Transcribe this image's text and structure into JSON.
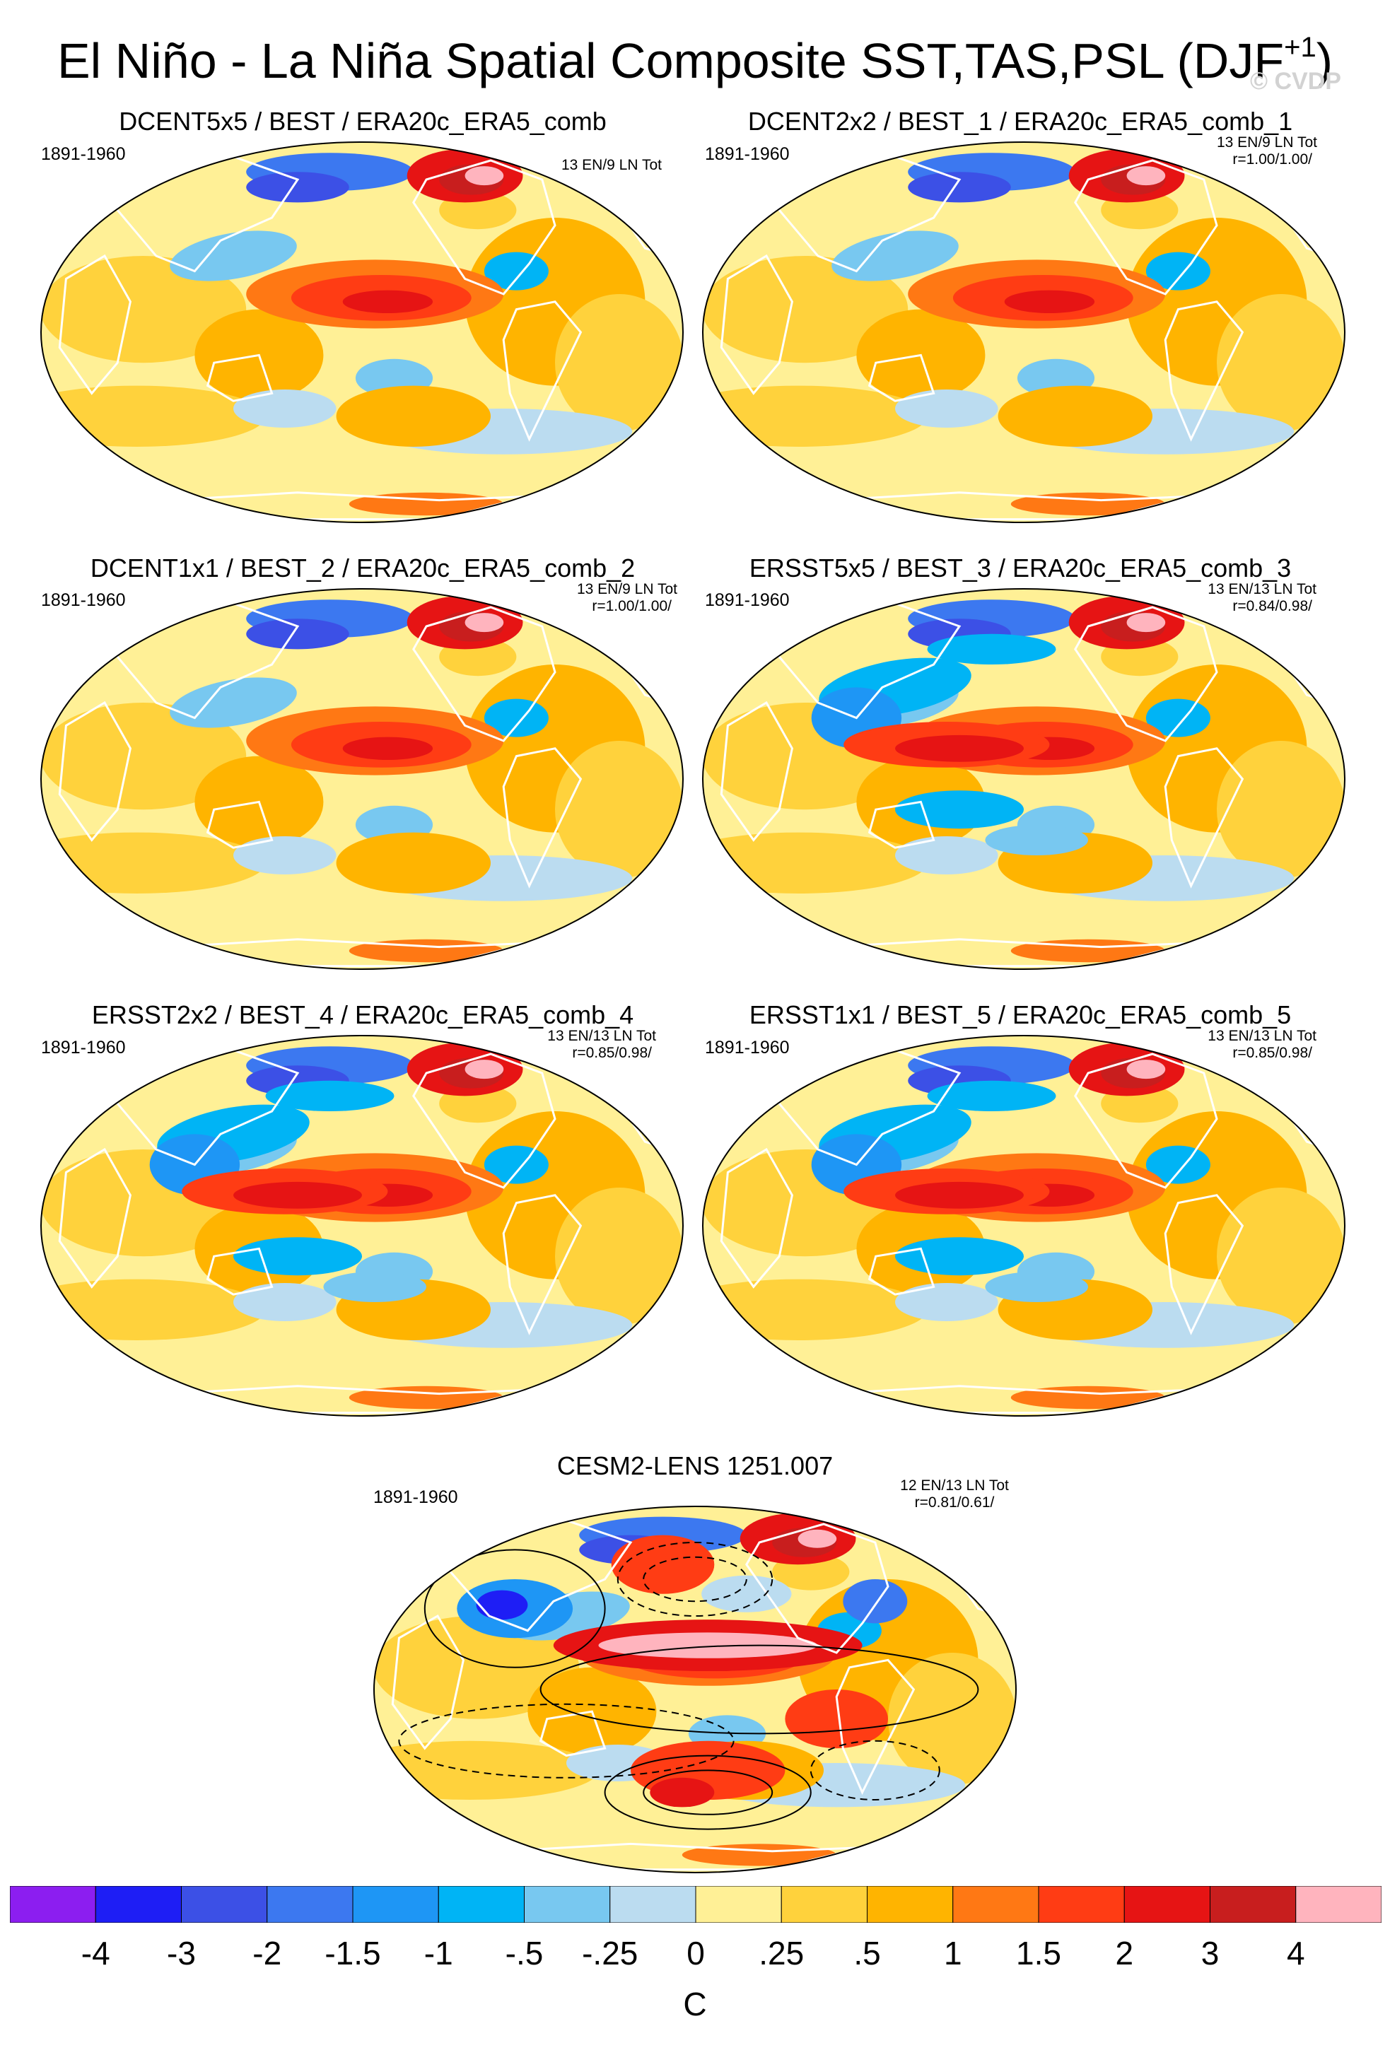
{
  "header": {
    "title": "El Niño - La Niña Spatial Composite SST,TAS,PSL (DJF",
    "title_superscript": "+1",
    "title_close": ")",
    "watermark": "© CVDP"
  },
  "panels": [
    {
      "title": "DCENT5x5 / BEST / ERA20c_ERA5_comb",
      "period": "1891-1960",
      "counts": "13 EN/9 LN Tot",
      "corr": "",
      "pattern": "dcent"
    },
    {
      "title": "DCENT2x2 / BEST_1 / ERA20c_ERA5_comb_1",
      "period": "1891-1960",
      "counts": "13 EN/9 LN Tot",
      "corr": "r=1.00/1.00/",
      "pattern": "dcent"
    },
    {
      "title": "DCENT1x1 / BEST_2 / ERA20c_ERA5_comb_2",
      "period": "1891-1960",
      "counts": "13 EN/9 LN Tot",
      "corr": "r=1.00/1.00/",
      "pattern": "dcent"
    },
    {
      "title": "ERSST5x5 / BEST_3 / ERA20c_ERA5_comb_3",
      "period": "1891-1960",
      "counts": "13 EN/13 LN Tot",
      "corr": "r=0.84/0.98/",
      "pattern": "ersst"
    },
    {
      "title": "ERSST2x2 / BEST_4 / ERA20c_ERA5_comb_4",
      "period": "1891-1960",
      "counts": "13 EN/13 LN Tot",
      "corr": "r=0.85/0.98/",
      "pattern": "ersst"
    },
    {
      "title": "ERSST1x1 / BEST_5 / ERA20c_ERA5_comb_5",
      "period": "1891-1960",
      "counts": "13 EN/13 LN Tot",
      "corr": "r=0.85/0.98/",
      "pattern": "ersst"
    },
    {
      "title": "CESM2-LENS 1251.007",
      "period": "1891-1960",
      "counts": "12 EN/13 LN Tot",
      "corr": "r=0.81/0.61/",
      "pattern": "cesm"
    }
  ],
  "colorbar": {
    "unit": "C",
    "tick_labels": [
      "-4",
      "-3",
      "-2",
      "-1.5",
      "-1",
      "-.5",
      "-.25",
      "0",
      ".25",
      ".5",
      "1",
      "1.5",
      "2",
      "3",
      "4"
    ],
    "colors": [
      "#8c1ef0",
      "#1e1ef5",
      "#3c50e6",
      "#3c78f0",
      "#1e96f5",
      "#00b4f5",
      "#78c8f0",
      "#bbdcf0",
      "#fff096",
      "#ffd23c",
      "#ffb400",
      "#ff7814",
      "#ff3c14",
      "#e61414",
      "#c81e1e",
      "#ffb4be"
    ]
  },
  "chart_data": {
    "type": "heatmap",
    "title": "El Niño - La Niña Spatial Composite SST,TAS,PSL (DJF+1)",
    "projection": "Robinson (global, Pacific-centered)",
    "variable": "SST/TAS anomaly composite (shaded) with PSL contours (CESM2 panel)",
    "units": "C",
    "contour_levels": [
      -4,
      -3,
      -2,
      -1.5,
      -1,
      -0.5,
      -0.25,
      0,
      0.25,
      0.5,
      1,
      1.5,
      2,
      3,
      4
    ],
    "panel_count": 7,
    "period": "1891-1960"
  }
}
